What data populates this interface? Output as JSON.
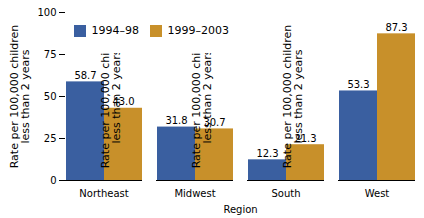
{
  "chart_data": {
    "type": "bar",
    "categories": [
      "Northeast",
      "Midwest",
      "South",
      "West"
    ],
    "series": [
      {
        "name": "1994–98",
        "color": "#3a5fa0",
        "values": [
          58.7,
          31.8,
          12.3,
          53.3
        ]
      },
      {
        "name": "1999–2003",
        "color": "#c8902a",
        "values": [
          43.0,
          30.7,
          21.3,
          87.3
        ],
        "value_labels": [
          "43.0",
          "30.7",
          "21.3",
          "87.3"
        ]
      }
    ],
    "xlabel": "Region",
    "ylabel": "Rate per 100,000 children\nless than 2 years",
    "ylim": [
      0,
      100
    ],
    "yticks": [
      0,
      25,
      50,
      75,
      100
    ],
    "grid": false,
    "legend": "upper left",
    "data_labels": true
  }
}
